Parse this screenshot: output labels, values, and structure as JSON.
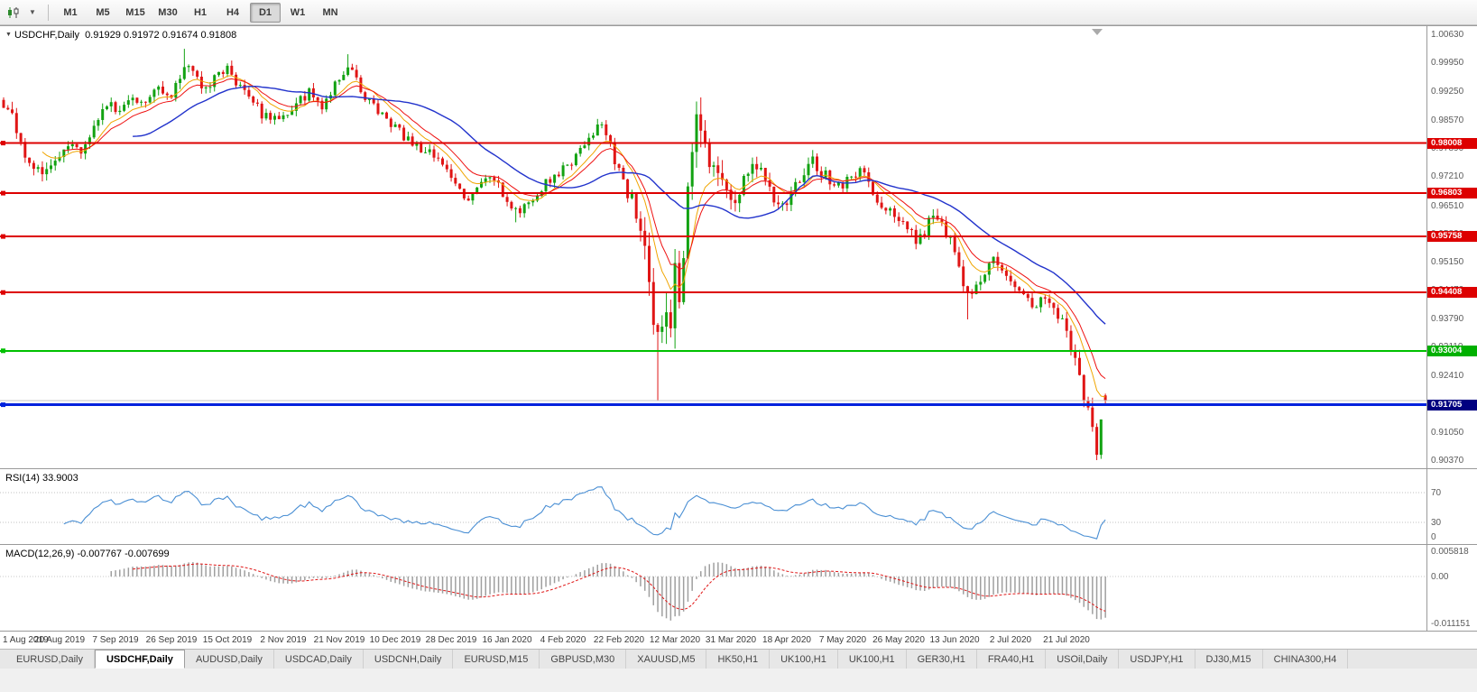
{
  "toolbar": {
    "timeframes": [
      {
        "label": "M1",
        "active": false
      },
      {
        "label": "M5",
        "active": false
      },
      {
        "label": "M15",
        "active": false
      },
      {
        "label": "M30",
        "active": false
      },
      {
        "label": "H1",
        "active": false
      },
      {
        "label": "H4",
        "active": false
      },
      {
        "label": "D1",
        "active": true
      },
      {
        "label": "W1",
        "active": false
      },
      {
        "label": "MN",
        "active": false
      }
    ]
  },
  "chart": {
    "symbol": "USDCHF,Daily",
    "ohlc": "0.91929 0.91972 0.91674 0.91808"
  },
  "chart_data": {
    "type": "candlestick",
    "title": "USDCHF,Daily",
    "last_ohlc": {
      "open": 0.91929,
      "high": 0.91972,
      "low": 0.91674,
      "close": 0.91808
    },
    "y_range": [
      0.9037,
      1.0063
    ],
    "candle_count": 257,
    "first_open": 0.9905,
    "price_axis": [
      "1.00630",
      "0.99950",
      "0.99250",
      "0.98570",
      "0.97890",
      "0.97210",
      "0.96510",
      "0.95830",
      "0.95150",
      "0.94470",
      "0.93790",
      "0.93110",
      "0.92410",
      "0.91730",
      "0.91050",
      "0.90370"
    ],
    "x_labels": [
      [
        0,
        "1 Aug 2019"
      ],
      [
        13,
        "20 Aug 2019"
      ],
      [
        26,
        "7 Sep 2019"
      ],
      [
        39,
        "26 Sep 2019"
      ],
      [
        52,
        "15 Oct 2019"
      ],
      [
        65,
        "2 Nov 2019"
      ],
      [
        78,
        "21 Nov 2019"
      ],
      [
        91,
        "10 Dec 2019"
      ],
      [
        104,
        "28 Dec 2019"
      ],
      [
        117,
        "16 Jan 2020"
      ],
      [
        130,
        "4 Feb 2020"
      ],
      [
        143,
        "22 Feb 2020"
      ],
      [
        156,
        "12 Mar 2020"
      ],
      [
        169,
        "31 Mar 2020"
      ],
      [
        182,
        "18 Apr 2020"
      ],
      [
        195,
        "7 May 2020"
      ],
      [
        208,
        "26 May 2020"
      ],
      [
        221,
        "13 Jun 2020"
      ],
      [
        234,
        "2 Jul 2020"
      ],
      [
        247,
        "21 Jul 2020"
      ]
    ],
    "close_waypoints": [
      [
        0,
        0.99
      ],
      [
        2,
        0.9862
      ],
      [
        4,
        0.9795
      ],
      [
        6,
        0.9748
      ],
      [
        9,
        0.9722
      ],
      [
        11,
        0.9744
      ],
      [
        13,
        0.9768
      ],
      [
        15,
        0.9802
      ],
      [
        18,
        0.9786
      ],
      [
        21,
        0.9843
      ],
      [
        24,
        0.9898
      ],
      [
        27,
        0.9872
      ],
      [
        30,
        0.9918
      ],
      [
        33,
        0.9896
      ],
      [
        36,
        0.9934
      ],
      [
        39,
        0.9921
      ],
      [
        41,
        0.9962
      ],
      [
        43,
        0.9996
      ],
      [
        45,
        0.9956
      ],
      [
        47,
        0.993
      ],
      [
        49,
        0.9962
      ],
      [
        52,
        0.9984
      ],
      [
        54,
        0.9944
      ],
      [
        57,
        0.9906
      ],
      [
        60,
        0.9872
      ],
      [
        63,
        0.9856
      ],
      [
        65,
        0.9866
      ],
      [
        68,
        0.9898
      ],
      [
        71,
        0.9924
      ],
      [
        74,
        0.9892
      ],
      [
        77,
        0.9944
      ],
      [
        80,
        0.9988
      ],
      [
        82,
        0.9958
      ],
      [
        84,
        0.9906
      ],
      [
        87,
        0.988
      ],
      [
        89,
        0.9856
      ],
      [
        91,
        0.984
      ],
      [
        93,
        0.9816
      ],
      [
        96,
        0.9792
      ],
      [
        99,
        0.9776
      ],
      [
        102,
        0.9752
      ],
      [
        104,
        0.9722
      ],
      [
        106,
        0.9688
      ],
      [
        108,
        0.9668
      ],
      [
        110,
        0.9698
      ],
      [
        113,
        0.973
      ],
      [
        115,
        0.9702
      ],
      [
        117,
        0.9662
      ],
      [
        119,
        0.9636
      ],
      [
        121,
        0.9648
      ],
      [
        124,
        0.9682
      ],
      [
        127,
        0.9714
      ],
      [
        130,
        0.9736
      ],
      [
        133,
        0.9766
      ],
      [
        136,
        0.9812
      ],
      [
        139,
        0.9846
      ],
      [
        141,
        0.9792
      ],
      [
        143,
        0.9732
      ],
      [
        145,
        0.9684
      ],
      [
        147,
        0.9634
      ],
      [
        149,
        0.9562
      ],
      [
        150,
        0.9482
      ],
      [
        151,
        0.9392
      ],
      [
        152,
        0.9302
      ],
      [
        153,
        0.9362
      ],
      [
        154,
        0.9432
      ],
      [
        155,
        0.939
      ],
      [
        156,
        0.9482
      ],
      [
        157,
        0.9452
      ],
      [
        158,
        0.9562
      ],
      [
        159,
        0.9652
      ],
      [
        160,
        0.9762
      ],
      [
        161,
        0.9848
      ],
      [
        162,
        0.9822
      ],
      [
        163,
        0.9792
      ],
      [
        165,
        0.9762
      ],
      [
        167,
        0.9722
      ],
      [
        169,
        0.9648
      ],
      [
        171,
        0.9682
      ],
      [
        173,
        0.9722
      ],
      [
        175,
        0.9756
      ],
      [
        177,
        0.9708
      ],
      [
        179,
        0.9672
      ],
      [
        182,
        0.9666
      ],
      [
        184,
        0.9692
      ],
      [
        186,
        0.9726
      ],
      [
        188,
        0.9756
      ],
      [
        190,
        0.9732
      ],
      [
        193,
        0.9706
      ],
      [
        195,
        0.9696
      ],
      [
        197,
        0.9722
      ],
      [
        199,
        0.9742
      ],
      [
        201,
        0.9706
      ],
      [
        203,
        0.9666
      ],
      [
        205,
        0.9642
      ],
      [
        208,
        0.9622
      ],
      [
        210,
        0.9602
      ],
      [
        212,
        0.9566
      ],
      [
        214,
        0.9592
      ],
      [
        216,
        0.9626
      ],
      [
        218,
        0.9606
      ],
      [
        220,
        0.9562
      ],
      [
        222,
        0.9492
      ],
      [
        224,
        0.9432
      ],
      [
        226,
        0.9462
      ],
      [
        228,
        0.9492
      ],
      [
        230,
        0.9522
      ],
      [
        232,
        0.9492
      ],
      [
        234,
        0.9466
      ],
      [
        236,
        0.9446
      ],
      [
        238,
        0.9416
      ],
      [
        240,
        0.9402
      ],
      [
        242,
        0.9432
      ],
      [
        244,
        0.9396
      ],
      [
        246,
        0.9366
      ],
      [
        247,
        0.9342
      ],
      [
        248,
        0.9312
      ],
      [
        249,
        0.9272
      ],
      [
        250,
        0.9232
      ],
      [
        251,
        0.9192
      ],
      [
        252,
        0.9152
      ],
      [
        253,
        0.9106
      ],
      [
        254,
        0.9062
      ],
      [
        255,
        0.9135
      ],
      [
        256,
        0.9181
      ]
    ],
    "volatility_waypoints": [
      [
        0,
        0.0045
      ],
      [
        8,
        0.004
      ],
      [
        20,
        0.0035
      ],
      [
        40,
        0.0035
      ],
      [
        70,
        0.003
      ],
      [
        100,
        0.0028
      ],
      [
        130,
        0.0028
      ],
      [
        144,
        0.004
      ],
      [
        148,
        0.0065
      ],
      [
        151,
        0.011
      ],
      [
        155,
        0.012
      ],
      [
        161,
        0.011
      ],
      [
        165,
        0.008
      ],
      [
        170,
        0.006
      ],
      [
        176,
        0.0045
      ],
      [
        190,
        0.0035
      ],
      [
        205,
        0.0035
      ],
      [
        220,
        0.004
      ],
      [
        235,
        0.003
      ],
      [
        248,
        0.004
      ],
      [
        253,
        0.0055
      ],
      [
        256,
        0.0035
      ]
    ],
    "overrides": {
      "42": {
        "h": 1.0028
      },
      "80": {
        "h": 1.0015
      },
      "119": {
        "l": 0.961
      },
      "139": {
        "h": 0.9852
      },
      "152": {
        "l": 0.918
      },
      "161": {
        "h": 0.9901
      },
      "224": {
        "l": 0.9376
      },
      "254": {
        "l": 0.9037
      },
      "255": {
        "c": 0.9135
      },
      "256": {
        "o": 0.91929,
        "h": 0.91972,
        "l": 0.91674,
        "c": 0.91808
      }
    },
    "horizontal_lines": [
      {
        "value": 0.98008,
        "label": "0.98008",
        "color": "#dd0000",
        "tag_bg": "#dd0000",
        "width": 2
      },
      {
        "value": 0.96803,
        "label": "0.96803",
        "color": "#dd0000",
        "tag_bg": "#dd0000",
        "width": 2
      },
      {
        "value": 0.95758,
        "label": "0.95758",
        "color": "#dd0000",
        "tag_bg": "#dd0000",
        "width": 2
      },
      {
        "value": 0.94408,
        "label": "0.94408",
        "color": "#dd0000",
        "tag_bg": "#dd0000",
        "width": 2
      },
      {
        "value": 0.93004,
        "label": "0.93004",
        "color": "#00c000",
        "tag_bg": "#00b000",
        "width": 2
      },
      {
        "value": 0.91705,
        "label": "0.91705",
        "color": "#0022dd",
        "tag_bg": "#000080",
        "width": 3
      },
      {
        "value": 0.91808,
        "label": null,
        "color": "#c6c6c6",
        "width": 1
      }
    ],
    "moving_averages": [
      {
        "name": "fast",
        "type": "ema",
        "period": 9,
        "color": "#f0a500",
        "width": 1
      },
      {
        "name": "mid",
        "type": "ema",
        "period": 14,
        "color": "#ee1111",
        "width": 1
      },
      {
        "name": "slow",
        "type": "sma",
        "period": 30,
        "color": "#2233cc",
        "width": 1.4
      }
    ],
    "rsi": {
      "label": "RSI(14) 33.9003",
      "period": 14,
      "last_value": 33.9003,
      "levels": [
        70,
        30
      ],
      "axis_labels": [
        {
          "v": 70,
          "t": "70"
        },
        {
          "v": 30,
          "t": "30"
        },
        {
          "v": 0,
          "t": "0"
        }
      ],
      "color": "#4a8fd4"
    },
    "macd": {
      "label": "MACD(12,26,9) -0.007767 -0.007699",
      "fast": 12,
      "slow": 26,
      "signal": 9,
      "last_main": -0.007767,
      "last_signal": -0.007699,
      "axis_labels": [
        {
          "v": 0.005818,
          "t": "0.005818"
        },
        {
          "v": 0,
          "t": "0.00"
        },
        {
          "v": -0.011151,
          "t": "-0.011151"
        }
      ],
      "hist_color": "#9f9f9f",
      "signal_color": "#e01515"
    },
    "colors": {
      "up": "#12a212",
      "down": "#e01515",
      "background": "#ffffff"
    }
  },
  "tabs": {
    "items": [
      {
        "label": "EURUSD,Daily",
        "active": false
      },
      {
        "label": "USDCHF,Daily",
        "active": true
      },
      {
        "label": "AUDUSD,Daily",
        "active": false
      },
      {
        "label": "USDCAD,Daily",
        "active": false
      },
      {
        "label": "USDCNH,Daily",
        "active": false
      },
      {
        "label": "EURUSD,M15",
        "active": false
      },
      {
        "label": "GBPUSD,M30",
        "active": false
      },
      {
        "label": "XAUUSD,M5",
        "active": false
      },
      {
        "label": "HK50,H1",
        "active": false
      },
      {
        "label": "UK100,H1",
        "active": false
      },
      {
        "label": "UK100,H1",
        "active": false
      },
      {
        "label": "GER30,H1",
        "active": false
      },
      {
        "label": "FRA40,H1",
        "active": false
      },
      {
        "label": "USOil,Daily",
        "active": false
      },
      {
        "label": "USDJPY,H1",
        "active": false
      },
      {
        "label": "DJ30,M15",
        "active": false
      },
      {
        "label": "CHINA300,H4",
        "active": false
      }
    ]
  }
}
